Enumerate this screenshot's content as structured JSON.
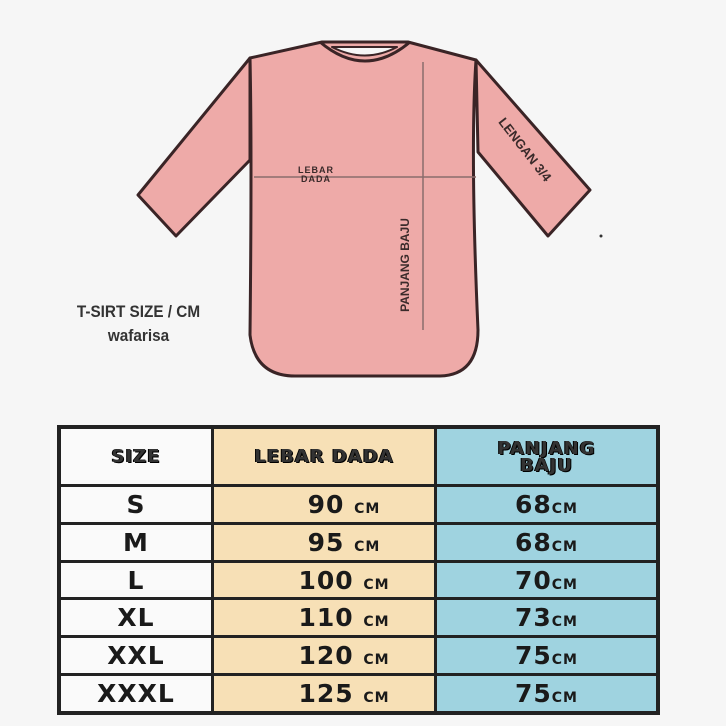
{
  "diagram": {
    "chest_label_line1": "LEBAR",
    "chest_label_line2": "DADA",
    "length_label": "PANJANG BAJU",
    "sleeve_label": "LENGAN 3/4",
    "shirt_color": "#eeaaa8"
  },
  "caption": {
    "title": "T-SIRT SIZE / CM",
    "brand": "wafarisa"
  },
  "table": {
    "headers": [
      "SIZE",
      "LEBAR DADA",
      "PANJANG BAJU"
    ],
    "unit": "cm",
    "rows": [
      {
        "size": "S",
        "chest": "90",
        "length": "68"
      },
      {
        "size": "M",
        "chest": "95",
        "length": "68"
      },
      {
        "size": "L",
        "chest": "100",
        "length": "70"
      },
      {
        "size": "XL",
        "chest": "110",
        "length": "73"
      },
      {
        "size": "XXL",
        "chest": "120",
        "length": "75"
      },
      {
        "size": "XXXL",
        "chest": "125",
        "length": "75"
      }
    ]
  }
}
